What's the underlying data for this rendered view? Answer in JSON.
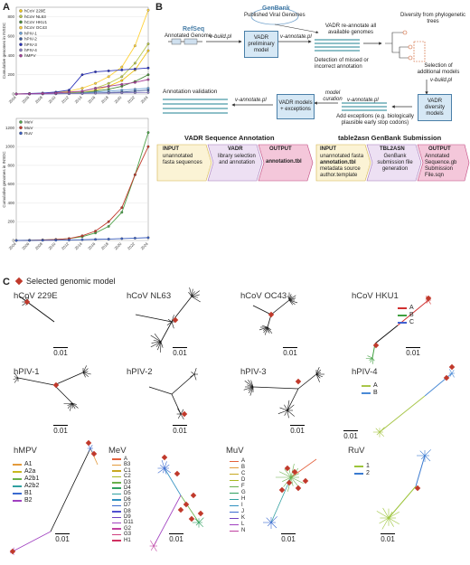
{
  "panels": {
    "a": "A",
    "b": "B",
    "c": "C"
  },
  "colors": {
    "accent_blue": "#4a7fa8",
    "box_fill": "#d6e8f5",
    "pink": "#e9b4c8",
    "yellow": "#fbf3d5",
    "selected": "#c0392b"
  },
  "chart_data": [
    {
      "type": "line",
      "ylabel": "Cumulative genomes in INSDC",
      "ylim": [
        0,
        900
      ],
      "yticks": [
        "0",
        "200",
        "400",
        "600",
        "800"
      ],
      "categories": [
        "2004",
        "2006",
        "2008",
        "2010",
        "2012",
        "2014",
        "2016",
        "2018",
        "2020",
        "2022",
        "2024"
      ],
      "legend_position": "top-left",
      "series": [
        {
          "name": "hCoV 229E",
          "color": "#f0c419",
          "values": [
            0,
            2,
            4,
            6,
            8,
            12,
            40,
            80,
            140,
            250,
            450
          ]
        },
        {
          "name": "hCoV NL63",
          "color": "#b9c64a",
          "values": [
            0,
            2,
            5,
            8,
            12,
            25,
            60,
            110,
            180,
            320,
            520
          ]
        },
        {
          "name": "hCoV HKU1",
          "color": "#4c8c3d",
          "values": [
            0,
            1,
            3,
            5,
            8,
            15,
            30,
            50,
            80,
            130,
            200
          ]
        },
        {
          "name": "hCoV OC43",
          "color": "#ffd23c",
          "values": [
            0,
            3,
            8,
            15,
            30,
            60,
            110,
            180,
            280,
            500,
            870
          ]
        },
        {
          "name": "hPIV-1",
          "color": "#6aa0d6",
          "values": [
            0,
            1,
            2,
            3,
            5,
            10,
            20,
            30,
            40,
            50,
            60
          ]
        },
        {
          "name": "hPIV-2",
          "color": "#3b5a9a",
          "values": [
            0,
            1,
            2,
            3,
            4,
            6,
            10,
            15,
            20,
            30,
            40
          ]
        },
        {
          "name": "hPIV-3",
          "color": "#2a32b8",
          "values": [
            0,
            5,
            10,
            20,
            40,
            200,
            230,
            240,
            250,
            260,
            270
          ]
        },
        {
          "name": "hPIV-4",
          "color": "#8a7fc2",
          "values": [
            0,
            1,
            2,
            3,
            4,
            5,
            8,
            10,
            12,
            14,
            16
          ]
        },
        {
          "name": "hMPV",
          "color": "#a8439a",
          "values": [
            0,
            2,
            5,
            10,
            20,
            30,
            60,
            80,
            100,
            120,
            150
          ]
        }
      ]
    },
    {
      "type": "line",
      "ylabel": "Cumulative genomes in INSDC",
      "ylim": [
        0,
        1300
      ],
      "yticks": [
        "0",
        "200",
        "400",
        "600",
        "800",
        "1000",
        "1200"
      ],
      "categories": [
        "2004",
        "2006",
        "2008",
        "2010",
        "2012",
        "2014",
        "2016",
        "2018",
        "2020",
        "2022",
        "2024"
      ],
      "legend_position": "top-left",
      "series": [
        {
          "name": "MeV",
          "color": "#4ea24a",
          "values": [
            0,
            2,
            5,
            10,
            20,
            40,
            80,
            150,
            300,
            700,
            1150
          ]
        },
        {
          "name": "MuV",
          "color": "#c0392b",
          "values": [
            0,
            2,
            5,
            10,
            20,
            50,
            100,
            200,
            350,
            700,
            1000
          ]
        },
        {
          "name": "RuV",
          "color": "#3b5fc0",
          "values": [
            0,
            1,
            2,
            3,
            5,
            8,
            12,
            15,
            20,
            25,
            30
          ]
        }
      ]
    }
  ],
  "workflow": {
    "genbank": "GenBank",
    "genbank_sub": "Published Viral Genomes",
    "refseq": "RefSeq",
    "annotated_genome": "Annotated Genome",
    "vbuild1": "v-build.pl",
    "vadr_prelim": "VADR preliminary model",
    "vannotate1": "v-annotate.pl",
    "reannotate": "VADR  re-annotate all available genomes",
    "detection": "Detection of missed or incorrect annotation",
    "diversity": "Diversity from phylogenetic trees",
    "selection": "Selection of additional models",
    "vbuild2": "v-build.pl",
    "annot_validation": "Annotation validation",
    "vannotate2": "v-annotate.pl",
    "vadr_exceptions": "VADR models + exceptions",
    "model_curation": "model curation",
    "vannotate3": "v-annotate.pl",
    "add_exceptions": "Add exceptions (e.g. biologically plausible early stop codons)",
    "vadr_diversity": "VADR diversity models",
    "seqann_title": "VADR Sequence Annotation",
    "seqann_input_h": "INPUT",
    "seqann_input": "unannotated fasta sequences",
    "seqann_vadr_h": "VADR",
    "seqann_vadr": "library selection and annotation",
    "seqann_output_h": "OUTPUT",
    "seqann_output": "annotation.tbl",
    "sub_title": "table2asn GenBank Submission",
    "sub_input_h": "INPUT",
    "sub_input_a": "unannotated fasta",
    "sub_input_b": "annotation.tbl",
    "sub_input_c": "metadata source author.template",
    "sub_tbl_h": "TBL2ASN",
    "sub_tbl": "GenBank submission file generation",
    "sub_output_h": "OUTPUT",
    "sub_output_a": "Annotated Sequence.gb",
    "sub_output_b": "Submission File.sqn"
  },
  "trees": {
    "selected_legend": "Selected genomic model",
    "scale_label": "0.01",
    "items": [
      {
        "title": "hCoV 229E"
      },
      {
        "title": "hCoV NL63"
      },
      {
        "title": "hCoV OC43"
      },
      {
        "title": "hCoV HKU1",
        "legend": [
          {
            "label": "A",
            "color": "#d03030"
          },
          {
            "label": "B",
            "color": "#40a040"
          },
          {
            "label": "C",
            "color": "#4060d0"
          }
        ]
      },
      {
        "title": "hPIV-1"
      },
      {
        "title": "hPIV-2"
      },
      {
        "title": "hPIV-3"
      },
      {
        "title": "hPIV-4",
        "legend": [
          {
            "label": "A",
            "color": "#a8c64a"
          },
          {
            "label": "B",
            "color": "#4a8ad6"
          }
        ]
      },
      {
        "title": "hMPV",
        "legend": [
          {
            "label": "A1",
            "color": "#e39a3b"
          },
          {
            "label": "A2a",
            "color": "#c8b820"
          },
          {
            "label": "A2b1",
            "color": "#6ab04c"
          },
          {
            "label": "A2b2",
            "color": "#30a0a0"
          },
          {
            "label": "B1",
            "color": "#3a6ad0"
          },
          {
            "label": "B2",
            "color": "#a040c0"
          }
        ]
      },
      {
        "title": "MeV",
        "legend": [
          {
            "label": "A",
            "color": "#e3603b"
          },
          {
            "label": "B3",
            "color": "#e39a3b"
          },
          {
            "label": "C1",
            "color": "#c8a820"
          },
          {
            "label": "C2",
            "color": "#a8b820"
          },
          {
            "label": "D3",
            "color": "#6ab04c"
          },
          {
            "label": "D4",
            "color": "#30a060"
          },
          {
            "label": "D5",
            "color": "#30a0a0"
          },
          {
            "label": "D6",
            "color": "#3090c0"
          },
          {
            "label": "D7",
            "color": "#3a6ad0"
          },
          {
            "label": "D8",
            "color": "#5050d0"
          },
          {
            "label": "D9",
            "color": "#7040c0"
          },
          {
            "label": "D11",
            "color": "#a040c0"
          },
          {
            "label": "G2",
            "color": "#c040a0"
          },
          {
            "label": "G3",
            "color": "#d04080"
          },
          {
            "label": "H1",
            "color": "#d03060"
          }
        ]
      },
      {
        "title": "MuV",
        "legend": [
          {
            "label": "A",
            "color": "#e3603b"
          },
          {
            "label": "B",
            "color": "#e39a3b"
          },
          {
            "label": "C",
            "color": "#c8a820"
          },
          {
            "label": "D",
            "color": "#a8b820"
          },
          {
            "label": "F",
            "color": "#6ab04c"
          },
          {
            "label": "G",
            "color": "#30a060"
          },
          {
            "label": "H",
            "color": "#30a0a0"
          },
          {
            "label": "I",
            "color": "#3090c0"
          },
          {
            "label": "J",
            "color": "#3a6ad0"
          },
          {
            "label": "K",
            "color": "#7040c0"
          },
          {
            "label": "L",
            "color": "#a040c0"
          },
          {
            "label": "N",
            "color": "#c040a0"
          }
        ]
      },
      {
        "title": "RuV",
        "legend": [
          {
            "label": "1",
            "color": "#9cc43a"
          },
          {
            "label": "2",
            "color": "#3a7ad0"
          }
        ]
      }
    ]
  }
}
